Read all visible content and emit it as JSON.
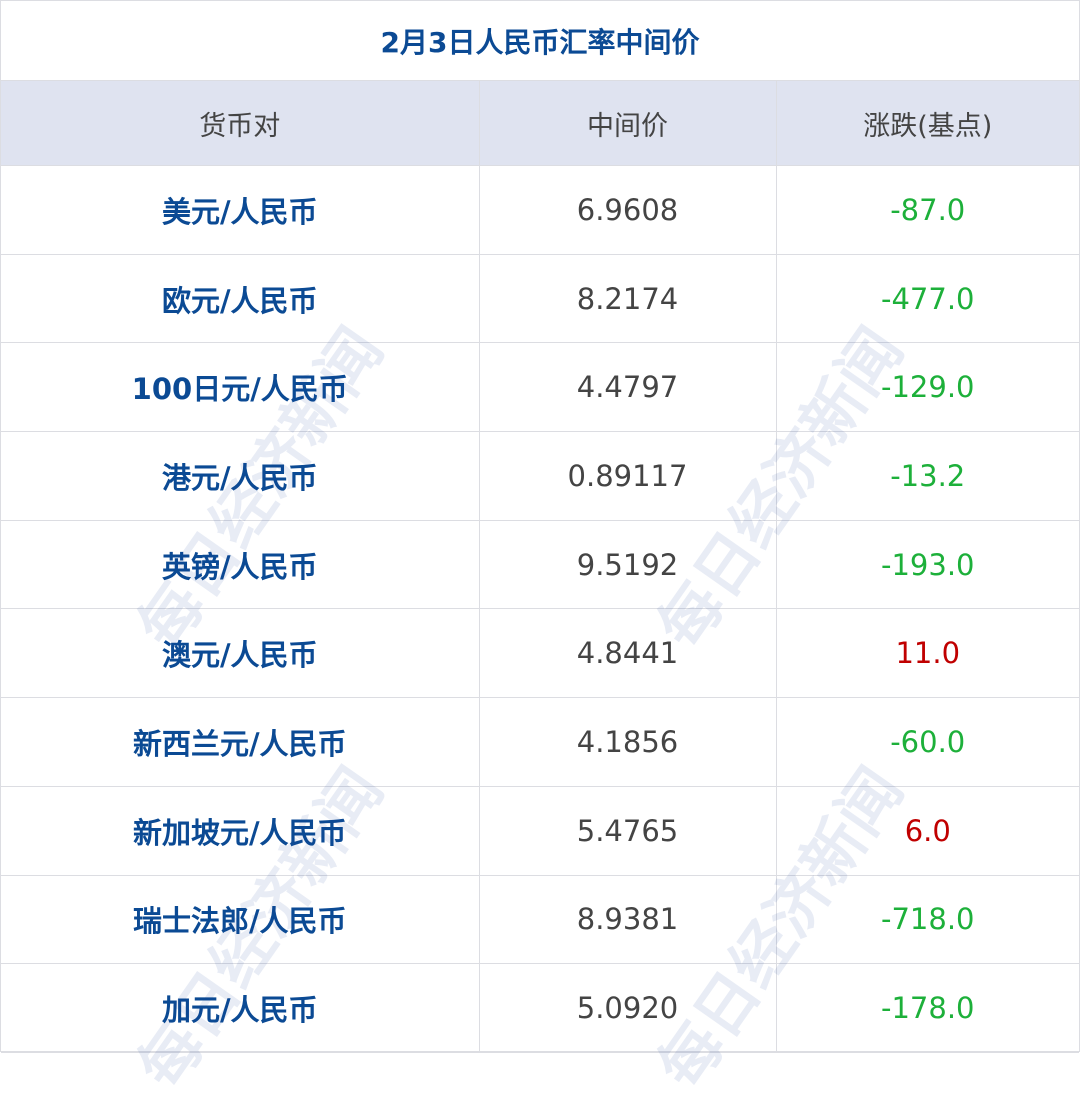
{
  "title": "2月3日人民币汇率中间价",
  "headers": [
    "货币对",
    "中间价",
    "涨跌(基点)"
  ],
  "colors": {
    "title": "#0b4a94",
    "header_bg": "#dfe3f0",
    "down": "#1db03a",
    "up": "#c00000"
  },
  "rows": [
    {
      "pair": "美元/人民币",
      "mid": "6.9608",
      "change": "-87.0",
      "direction": "down"
    },
    {
      "pair": "欧元/人民币",
      "mid": "8.2174",
      "change": "-477.0",
      "direction": "down"
    },
    {
      "pair": "100日元/人民币",
      "mid": "4.4797",
      "change": "-129.0",
      "direction": "down"
    },
    {
      "pair": "港元/人民币",
      "mid": "0.89117",
      "change": "-13.2",
      "direction": "down"
    },
    {
      "pair": "英镑/人民币",
      "mid": "9.5192",
      "change": "-193.0",
      "direction": "down"
    },
    {
      "pair": "澳元/人民币",
      "mid": "4.8441",
      "change": "11.0",
      "direction": "up"
    },
    {
      "pair": "新西兰元/人民币",
      "mid": "4.1856",
      "change": "-60.0",
      "direction": "down"
    },
    {
      "pair": "新加坡元/人民币",
      "mid": "5.4765",
      "change": "6.0",
      "direction": "up"
    },
    {
      "pair": "瑞士法郎/人民币",
      "mid": "8.9381",
      "change": "-718.0",
      "direction": "down"
    },
    {
      "pair": "加元/人民币",
      "mid": "5.0920",
      "change": "-178.0",
      "direction": "down"
    }
  ],
  "watermark": "每日经济新闻"
}
